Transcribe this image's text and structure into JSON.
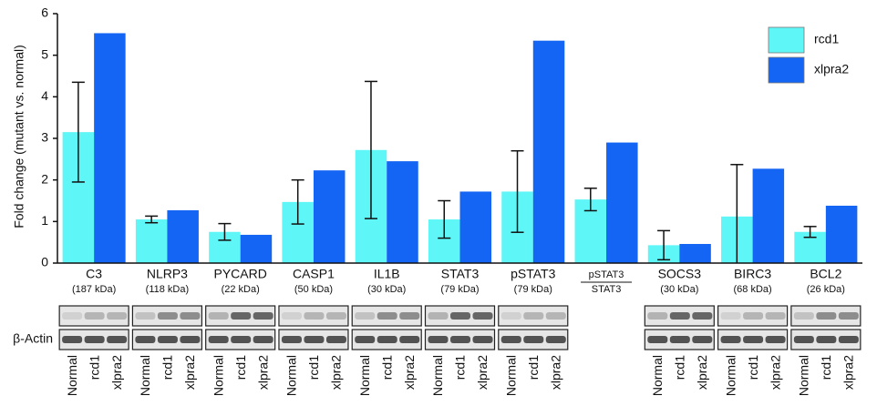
{
  "chart_data": {
    "type": "bar",
    "y_label": "Fold change (mutant vs. normal)",
    "categories": [
      "C3",
      "NLRP3",
      "PYCARD",
      "CASP1",
      "IL1B",
      "STAT3",
      "pSTAT3",
      "pSTAT3",
      "SOCS3",
      "BIRC3",
      "BCL2"
    ],
    "sublabels": [
      "(187 kDa)",
      "(118 kDa)",
      "(22 kDa)",
      "(50 kDa)",
      "(30 kDa)",
      "(79 kDa)",
      "(79 kDa)",
      "STAT3",
      "(30 kDa)",
      "(68 kDa)",
      "(26 kDa)"
    ],
    "series": [
      {
        "name": "rcd1",
        "color": "#5ef6f6",
        "values": [
          3.15,
          1.05,
          0.75,
          1.47,
          2.72,
          1.05,
          1.72,
          1.53,
          0.43,
          1.12,
          0.75
        ],
        "errors": [
          1.2,
          0.08,
          0.2,
          0.53,
          1.65,
          0.45,
          0.98,
          0.27,
          0.35,
          1.25,
          0.13
        ]
      },
      {
        "name": "xlpra2",
        "color": "#1565f4",
        "values": [
          5.53,
          1.27,
          0.68,
          2.23,
          2.45,
          1.72,
          5.35,
          2.9,
          0.46,
          2.27,
          1.38
        ]
      }
    ],
    "ylim": [
      0,
      6
    ],
    "yticks": [
      0,
      1,
      2,
      3,
      4,
      5,
      6
    ],
    "grid": false,
    "legend": "top-right"
  },
  "blot": {
    "row_label": "β-Actin",
    "lanes": [
      "Normal",
      "rcd1",
      "xlpra2"
    ]
  }
}
